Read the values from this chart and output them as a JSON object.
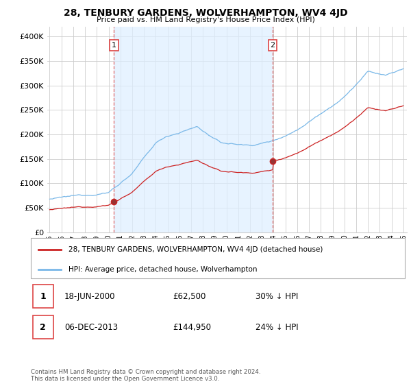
{
  "title": "28, TENBURY GARDENS, WOLVERHAMPTON, WV4 4JD",
  "subtitle": "Price paid vs. HM Land Registry's House Price Index (HPI)",
  "ylim": [
    0,
    420000
  ],
  "yticks": [
    0,
    50000,
    100000,
    150000,
    200000,
    250000,
    300000,
    350000,
    400000
  ],
  "ytick_labels": [
    "£0",
    "£50K",
    "£100K",
    "£150K",
    "£200K",
    "£250K",
    "£300K",
    "£350K",
    "£400K"
  ],
  "x_start_year": 1995,
  "x_end_year": 2025,
  "sale1_date": 2000.46,
  "sale1_price": 62500,
  "sale1_label": "1",
  "sale1_date_str": "18-JUN-2000",
  "sale1_price_str": "£62,500",
  "sale1_pct_str": "30% ↓ HPI",
  "sale2_date": 2013.92,
  "sale2_price": 144950,
  "sale2_label": "2",
  "sale2_date_str": "06-DEC-2013",
  "sale2_price_str": "£144,950",
  "sale2_pct_str": "24% ↓ HPI",
  "hpi_color": "#7ab8e8",
  "sale_color": "#cc2222",
  "vline_color": "#dd4444",
  "fill_color": "#ddeeff",
  "grid_color": "#cccccc",
  "bg_color": "#ffffff",
  "legend_label_sale": "28, TENBURY GARDENS, WOLVERHAMPTON, WV4 4JD (detached house)",
  "legend_label_hpi": "HPI: Average price, detached house, Wolverhampton",
  "footer": "Contains HM Land Registry data © Crown copyright and database right 2024.\nThis data is licensed under the Open Government Licence v3.0."
}
